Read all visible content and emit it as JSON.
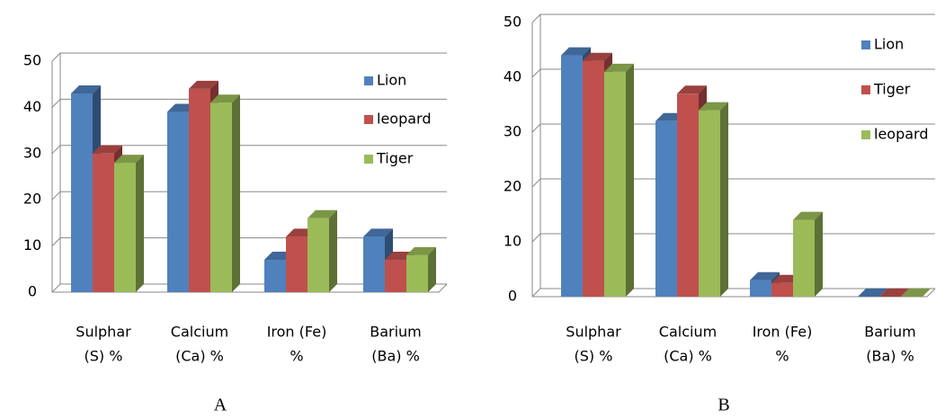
{
  "chart_data": [
    {
      "type": "bar3d",
      "caption": "A",
      "categories": [
        [
          "Sulphar",
          "(S)  %"
        ],
        [
          "Calcium",
          "(Ca)  %"
        ],
        [
          "Iron (Fe)",
          "%"
        ],
        [
          "Barium",
          "(Ba) %"
        ]
      ],
      "series": [
        {
          "name": "Lion",
          "color": "#4f81bd",
          "values": [
            43,
            39,
            7,
            12
          ]
        },
        {
          "name": "leopard",
          "color": "#c0504d",
          "values": [
            30,
            44,
            12,
            7
          ]
        },
        {
          "name": "Tiger",
          "color": "#9bbb59",
          "values": [
            28,
            41,
            16,
            8
          ]
        }
      ],
      "ylim": [
        0,
        50
      ],
      "yticks": [
        0,
        10,
        20,
        30,
        40,
        50
      ],
      "grid": true,
      "legend": "right"
    },
    {
      "type": "bar3d",
      "caption": "B",
      "categories": [
        [
          "Sulphar",
          "(S)  %"
        ],
        [
          "Calcium",
          "(Ca)  %"
        ],
        [
          "Iron (Fe)",
          "%"
        ],
        [
          "Barium",
          "(Ba) %"
        ]
      ],
      "series": [
        {
          "name": "Lion",
          "color": "#4f81bd",
          "values": [
            44,
            32,
            3,
            0
          ]
        },
        {
          "name": "Tiger",
          "color": "#c0504d",
          "values": [
            43,
            37,
            2.5,
            0
          ]
        },
        {
          "name": "leopard",
          "color": "#9bbb59",
          "values": [
            41,
            34,
            14,
            0
          ]
        }
      ],
      "ylim": [
        0,
        50
      ],
      "yticks": [
        0,
        10,
        20,
        30,
        40,
        50
      ],
      "grid": true,
      "legend": "right"
    }
  ]
}
